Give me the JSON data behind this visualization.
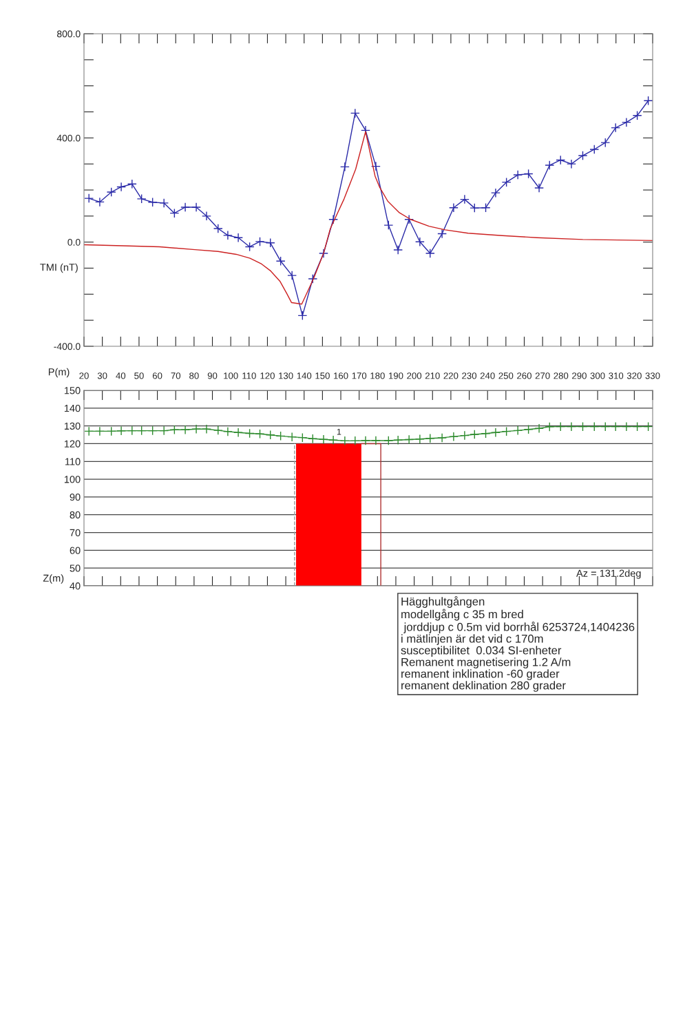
{
  "chart_data": [
    {
      "type": "line",
      "ylabel": "TMI (nT)",
      "xlim": [
        20,
        330
      ],
      "xticks": [
        20,
        30,
        40,
        50,
        60,
        70,
        80,
        90,
        100,
        110,
        120,
        130,
        140,
        150,
        160,
        170,
        180,
        190,
        200,
        210,
        220,
        230,
        240,
        250,
        260,
        270,
        280,
        290,
        300,
        310,
        320,
        330
      ],
      "ylim": [
        -400,
        800
      ],
      "yticks": [
        {
          "value": -400,
          "label": "-400.0"
        },
        {
          "value": -300,
          "label": null
        },
        {
          "value": -200,
          "label": null
        },
        {
          "value": -100,
          "label": null
        },
        {
          "value": 0,
          "label": "0.0"
        },
        {
          "value": 100,
          "label": null
        },
        {
          "value": 200,
          "label": null
        },
        {
          "value": 300,
          "label": null
        },
        {
          "value": 400,
          "label": "400.0"
        },
        {
          "value": 500,
          "label": null
        },
        {
          "value": 600,
          "label": null
        },
        {
          "value": 700,
          "label": null
        },
        {
          "value": 800,
          "label": "800.0"
        }
      ],
      "tick_labels": "y",
      "grid": false,
      "series": [
        {
          "color": "#2a2aa8",
          "marker": "cross",
          "x": [
            22.7,
            28.6,
            34.9,
            40.3,
            46.2,
            51.4,
            57.4,
            63.6,
            69.3,
            75.2,
            81.2,
            86.8,
            93.1,
            98.4,
            104.1,
            110.3,
            115.9,
            121.6,
            127.2,
            133.4,
            139.1,
            144.7,
            150.6,
            155.9,
            162.2,
            167.8,
            173.5,
            179.1,
            186.0,
            191.2,
            197.2,
            203.1,
            208.7,
            215.2,
            221.5,
            227.5,
            232.9,
            239.0,
            244.4,
            250.3,
            256.5,
            262.3,
            268.1,
            273.8,
            279.8,
            285.7,
            291.9,
            298.2,
            304.2,
            309.8,
            315.7,
            321.6,
            327.6
          ],
          "values": [
            168,
            154,
            192,
            212,
            223,
            166,
            153,
            150,
            111,
            134,
            134,
            100,
            52,
            26,
            17,
            -18,
            2,
            -3,
            -73,
            -128,
            -282,
            -141,
            -43,
            87,
            289,
            495,
            429,
            291,
            65,
            -30,
            87,
            1,
            -43,
            32,
            132,
            164,
            131,
            132,
            189,
            230,
            258,
            262,
            208,
            295,
            315,
            300,
            332,
            356,
            382,
            439,
            460,
            486,
            543
          ]
        },
        {
          "color": "#cc2020",
          "marker": "none",
          "x": [
            20,
            41.1,
            61.2,
            80.5,
            93.1,
            103,
            110.5,
            116.8,
            121.8,
            126.8,
            130.6,
            133.1,
            138.7,
            145.1,
            150.6,
            154.3,
            161.8,
            168.1,
            173.5,
            178.7,
            181.2,
            185.6,
            191.9,
            198.1,
            208.1,
            216.9,
            229.4,
            248.1,
            266.9,
            291.9,
            330
          ],
          "values": [
            -10,
            -14,
            -18,
            -29,
            -36,
            -47,
            -62,
            -84,
            -111,
            -150,
            -198,
            -232,
            -238,
            -141,
            -43,
            52,
            166,
            280,
            424,
            253,
            210,
            157,
            113,
            87,
            61,
            47,
            34,
            25,
            17,
            10,
            6
          ]
        }
      ]
    },
    {
      "type": "line",
      "xlabel": "P(m)",
      "ylabel": "Z(m)",
      "xlim": [
        20,
        330
      ],
      "xticks": [
        20,
        30,
        40,
        50,
        60,
        70,
        80,
        90,
        100,
        110,
        120,
        130,
        140,
        150,
        160,
        170,
        180,
        190,
        200,
        210,
        220,
        230,
        240,
        250,
        260,
        270,
        280,
        290,
        300,
        310,
        320,
        330
      ],
      "ylim": [
        40,
        150
      ],
      "yticks": [
        40,
        50,
        60,
        70,
        80,
        90,
        100,
        110,
        120,
        130,
        140,
        150
      ],
      "grid": "y",
      "series": [
        {
          "type": "area",
          "color": "#ff0000",
          "x": [
            135.6,
            171.2
          ],
          "values": [
            120,
            120
          ]
        },
        {
          "type": "line",
          "color": "#999999",
          "line_style": "dashed",
          "x": [
            134.8,
            134.8
          ],
          "values": [
            40,
            120
          ]
        },
        {
          "type": "line",
          "color": "#b03030",
          "x": [
            171.2,
            181.8,
            181.8
          ],
          "values": [
            120,
            120,
            40
          ]
        },
        {
          "type": "line",
          "color": "#2e8b2e",
          "marker": "cross",
          "x": [
            22.7,
            28.6,
            34.9,
            40.3,
            46.2,
            51.4,
            57.4,
            63.6,
            69.3,
            75.2,
            81.2,
            86.8,
            93.1,
            98.4,
            104.1,
            110.3,
            115.9,
            121.6,
            127.2,
            133.4,
            139.1,
            144.7,
            150.6,
            155.9,
            162.2,
            167.8,
            173.5,
            179.1,
            186.0,
            191.2,
            197.2,
            203.1,
            208.7,
            215.2,
            221.5,
            227.5,
            232.9,
            239.0,
            244.4,
            250.3,
            256.5,
            262.3,
            268.1,
            273.8,
            279.8,
            285.7,
            291.9,
            298.2,
            304.2,
            309.8,
            315.7,
            321.6,
            327.6
          ],
          "values": [
            127,
            127,
            127,
            127.2,
            127.3,
            127.3,
            127.3,
            127.3,
            127.8,
            127.8,
            128.2,
            128.2,
            127.5,
            126.8,
            126.3,
            125.8,
            125.5,
            124.9,
            124.3,
            123.8,
            123.4,
            122.8,
            122.4,
            122,
            121.6,
            121.6,
            121.7,
            121.7,
            121.7,
            122,
            122.3,
            122.6,
            123,
            123.3,
            124,
            124.6,
            125.2,
            125.7,
            126.3,
            126.9,
            127.4,
            128,
            128.6,
            129.5,
            129.6,
            129.6,
            129.6,
            129.6,
            129.6,
            129.6,
            129.6,
            129.6,
            129.6
          ]
        }
      ],
      "annotations": [
        {
          "text": "1",
          "x": 159,
          "y": 124
        },
        "Az = 131.2deg",
        "Hägghultgången",
        "modellgång c 35 m bred",
        " jorddjup c 0.5m vid borrhål 6253724,1404236",
        "i mätlinjen är det vid c 170m",
        "susceptibilitet  0.034 SI-enheter",
        "Remanent magnetisering 1.2 A/m",
        "remanent inklination -60 grader",
        "remanent deklination 280 grader"
      ]
    }
  ]
}
